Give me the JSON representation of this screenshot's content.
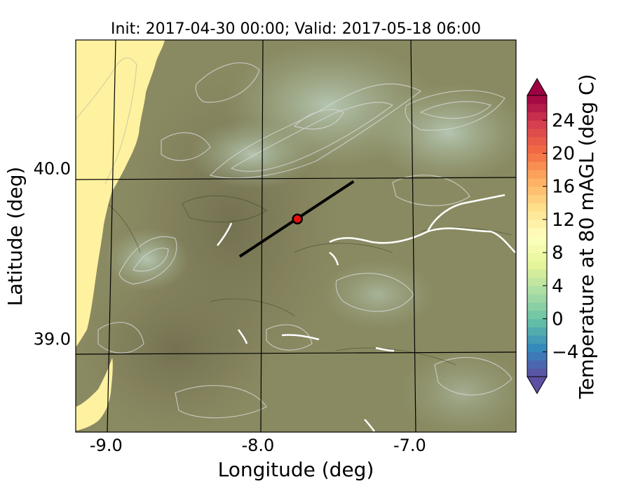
{
  "title": "Init: 2017-04-30 00:00; Valid: 2017-05-18 06:00",
  "xlabel": "Longitude (deg)",
  "ylabel": "Latitude (deg)",
  "colorbar": {
    "label": "Temperature at 80 mAGL (deg C)",
    "min": -7,
    "max": 27,
    "ticks": [
      -4,
      0,
      4,
      8,
      12,
      16,
      20,
      24
    ],
    "tick_labels": [
      "−4",
      "0",
      "4",
      "8",
      "12",
      "16",
      "20",
      "24"
    ],
    "colormap": [
      "#5e4fa2",
      "#3288bd",
      "#66c2a5",
      "#abdda4",
      "#e6f598",
      "#ffffbf",
      "#fee08b",
      "#fdae61",
      "#f46d43",
      "#d53e4f",
      "#9e0142"
    ],
    "extend": "both"
  },
  "axes": {
    "lon_range": [
      -9.2,
      -6.3
    ],
    "lat_range": [
      38.45,
      40.75
    ],
    "lon_ticks": [
      -9.0,
      -8.0,
      -7.0
    ],
    "lon_tick_labels": [
      "-9.0",
      "-8.0",
      "-7.0"
    ],
    "lat_ticks": [
      39.0,
      40.0
    ],
    "lat_tick_labels": [
      "39.0",
      "40.0"
    ]
  },
  "map": {
    "ocean_color": "#fef1a0",
    "land_color": "#8a8a62",
    "highland_color": "#a4b59a",
    "contour_color": "#d9d9d9",
    "graticule_color": "#000000"
  },
  "transect": {
    "start": {
      "lon": -8.12,
      "lat": 39.48
    },
    "end": {
      "lon": -7.37,
      "lat": 39.92
    },
    "color": "#000000"
  },
  "point": {
    "lon": -7.74,
    "lat": 39.7,
    "fill": "#e8110f",
    "stroke": "#000000"
  }
}
